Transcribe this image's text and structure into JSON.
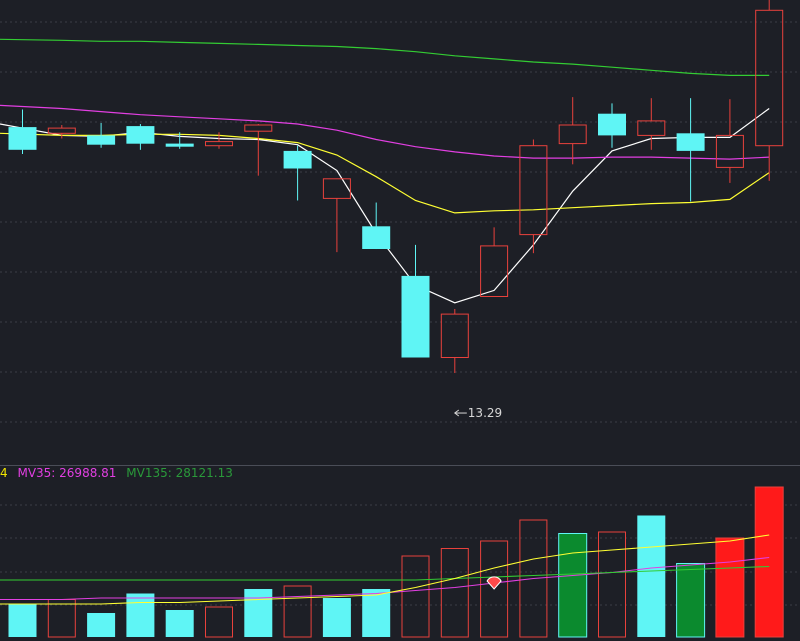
{
  "colors": {
    "background": "#1d1f26",
    "grid": "#3a3d47",
    "up": "#e8413c",
    "down": "#5ff5f5",
    "ma5": "#ffffff",
    "ma10": "#ffff33",
    "ma20": "#e23fe2",
    "ma60": "#33cc33",
    "vol_down_alt": "#0b8a2e",
    "vol_up_hi": "#ff1a1a",
    "legend_yellow": "#f2e600",
    "legend_magenta": "#e23fe2",
    "legend_green": "#2a9a3a"
  },
  "legend": {
    "ma10_fragment": "4",
    "mv35": "MV35: 26988.81",
    "mv135": "MV135: 28121.13"
  },
  "annotations": {
    "low_marker": "13.29"
  },
  "chart_data": [
    {
      "type": "candlestick",
      "ylim": [
        12.4,
        16.9
      ],
      "low_marker_value": 13.29,
      "candles": [
        {
          "open": 15.67,
          "close": 15.45,
          "high": 15.84,
          "low": 15.41,
          "dir": "down"
        },
        {
          "open": 15.61,
          "close": 15.66,
          "high": 15.69,
          "low": 15.56,
          "dir": "up"
        },
        {
          "open": 15.59,
          "close": 15.5,
          "high": 15.71,
          "low": 15.47,
          "dir": "down"
        },
        {
          "open": 15.68,
          "close": 15.51,
          "high": 15.7,
          "low": 15.45,
          "dir": "down"
        },
        {
          "open": 15.51,
          "close": 15.48,
          "high": 15.62,
          "low": 15.46,
          "dir": "down"
        },
        {
          "open": 15.49,
          "close": 15.53,
          "high": 15.62,
          "low": 15.46,
          "dir": "up"
        },
        {
          "open": 15.63,
          "close": 15.69,
          "high": 15.7,
          "low": 15.2,
          "dir": "up"
        },
        {
          "open": 15.44,
          "close": 15.27,
          "high": 15.49,
          "low": 14.96,
          "dir": "down"
        },
        {
          "open": 14.98,
          "close": 15.17,
          "high": 15.17,
          "low": 14.46,
          "dir": "up"
        },
        {
          "open": 14.71,
          "close": 14.49,
          "high": 14.94,
          "low": 14.49,
          "dir": "down"
        },
        {
          "open": 14.23,
          "close": 13.44,
          "high": 14.53,
          "low": 13.44,
          "dir": "down"
        },
        {
          "open": 13.44,
          "close": 13.86,
          "high": 13.91,
          "low": 13.29,
          "dir": "up"
        },
        {
          "open": 14.03,
          "close": 14.52,
          "high": 14.7,
          "low": 14.03,
          "dir": "up"
        },
        {
          "open": 14.63,
          "close": 15.49,
          "high": 15.55,
          "low": 14.45,
          "dir": "up"
        },
        {
          "open": 15.51,
          "close": 15.69,
          "high": 15.96,
          "low": 15.31,
          "dir": "up"
        },
        {
          "open": 15.8,
          "close": 15.59,
          "high": 15.9,
          "low": 15.47,
          "dir": "down"
        },
        {
          "open": 15.59,
          "close": 15.73,
          "high": 15.95,
          "low": 15.45,
          "dir": "up"
        },
        {
          "open": 15.61,
          "close": 15.44,
          "high": 15.95,
          "low": 14.95,
          "dir": "down"
        },
        {
          "open": 15.28,
          "close": 15.59,
          "high": 15.94,
          "low": 15.13,
          "dir": "up"
        },
        {
          "open": 15.49,
          "close": 16.8,
          "high": 16.95,
          "low": 15.15,
          "dir": "up"
        }
      ],
      "moving_averages": [
        {
          "key": "ma5",
          "values": [
            15.7,
            15.59,
            15.58,
            15.62,
            15.58,
            15.56,
            15.55,
            15.5,
            15.25,
            14.64,
            14.14,
            13.97,
            14.09,
            14.53,
            15.05,
            15.44,
            15.56,
            15.57,
            15.57,
            15.85
          ]
        },
        {
          "open_note": "",
          "key": "ma10",
          "values": [
            15.61,
            15.59,
            15.59,
            15.6,
            15.6,
            15.59,
            15.56,
            15.52,
            15.4,
            15.19,
            14.96,
            14.84,
            14.86,
            14.87,
            14.89,
            14.91,
            14.93,
            14.94,
            14.97,
            15.23
          ]
        },
        {
          "key": "ma20",
          "values": [
            15.88,
            15.85,
            15.82,
            15.79,
            15.77,
            15.75,
            15.73,
            15.7,
            15.64,
            15.55,
            15.48,
            15.43,
            15.39,
            15.37,
            15.37,
            15.38,
            15.38,
            15.37,
            15.36,
            15.38
          ]
        },
        {
          "key": "ma60",
          "values": [
            16.52,
            16.51,
            16.5,
            16.5,
            16.49,
            16.48,
            16.47,
            16.46,
            16.45,
            16.43,
            16.4,
            16.36,
            16.33,
            16.3,
            16.28,
            16.25,
            16.22,
            16.19,
            16.17,
            16.17
          ]
        }
      ]
    },
    {
      "type": "bar",
      "ylim": [
        0,
        100
      ],
      "values": [
        22,
        25,
        16,
        29,
        18,
        20,
        32,
        34,
        26,
        32,
        54,
        59,
        64,
        78,
        69,
        70,
        81,
        49,
        66,
        100
      ],
      "styles": [
        "down",
        "up-hollow",
        "down",
        "down",
        "down",
        "up-hollow",
        "down",
        "up-hollow",
        "down",
        "down",
        "up-hollow",
        "up-hollow",
        "up-hollow",
        "up-hollow",
        "down-alt",
        "up-hollow",
        "down",
        "down-alt",
        "up-filled",
        "up-filled"
      ],
      "moving_averages": [
        {
          "key": "mv35",
          "values": [
            25,
            25,
            26,
            26,
            26,
            26,
            26,
            27,
            28,
            29,
            31,
            33,
            36,
            39,
            41,
            43,
            46,
            48,
            50,
            53
          ]
        },
        {
          "key": "mv135",
          "values": [
            38,
            38,
            38,
            38,
            38,
            38,
            38,
            38,
            38,
            38,
            38,
            39,
            40,
            41,
            42,
            43,
            44,
            45,
            46,
            47
          ]
        },
        {
          "key": "mv10",
          "values": [
            22,
            22,
            22,
            23,
            23,
            24,
            25,
            26,
            27,
            28,
            33,
            39,
            46,
            52,
            56,
            58,
            60,
            62,
            64,
            68
          ]
        }
      ]
    }
  ]
}
